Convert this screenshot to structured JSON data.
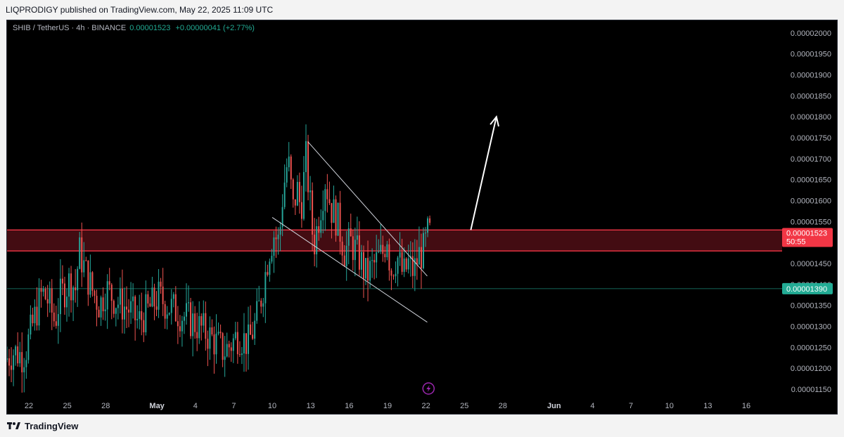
{
  "header": {
    "published": "LIQPRODIGY published on TradingView.com, May 22, 2025 11:09 UTC"
  },
  "legend": {
    "symbol": "SHIB / TetherUS · 4h · BINANCE",
    "last": "0.00001523",
    "change": "+0.00000041 (+2.77%)"
  },
  "footer": {
    "brand": "TradingView"
  },
  "colors": {
    "up": "#26a69a",
    "down": "#ef5350",
    "zone_fill": "#4a0d14",
    "zone_line": "#f23645",
    "support_line": "#22ab94",
    "trendline": "#d1d4dc",
    "arrow": "#ffffff",
    "badge_red": "#f23645",
    "badge_green": "#22ab94",
    "lightning": "#9c27b0"
  },
  "chart_data": {
    "type": "candlestick",
    "symbol": "SHIB/USDT",
    "interval": "4h",
    "y_tick_labels": [
      "0.00001150",
      "0.00001200",
      "0.00001250",
      "0.00001300",
      "0.00001350",
      "0.00001400",
      "0.00001450",
      "0.00001500",
      "0.00001550",
      "0.00001600",
      "0.00001650",
      "0.00001700",
      "0.00001750",
      "0.00001800",
      "0.00001850",
      "0.00001900",
      "0.00001950",
      "0.00002000"
    ],
    "y_ticks": [
      1.15e-05,
      1.2e-05,
      1.25e-05,
      1.3e-05,
      1.35e-05,
      1.4e-05,
      1.45e-05,
      1.5e-05,
      1.55e-05,
      1.6e-05,
      1.65e-05,
      1.7e-05,
      1.75e-05,
      1.8e-05,
      1.85e-05,
      1.9e-05,
      1.95e-05,
      2e-05
    ],
    "ylim": [
      1.13e-05,
      2.03e-05
    ],
    "x_ticks": [
      {
        "label": "22",
        "day": -9
      },
      {
        "label": "25",
        "day": -6
      },
      {
        "label": "28",
        "day": -3
      },
      {
        "label": "May",
        "day": 1,
        "bold": true
      },
      {
        "label": "4",
        "day": 4
      },
      {
        "label": "7",
        "day": 7
      },
      {
        "label": "10",
        "day": 10
      },
      {
        "label": "13",
        "day": 13
      },
      {
        "label": "16",
        "day": 16
      },
      {
        "label": "19",
        "day": 19
      },
      {
        "label": "22",
        "day": 22
      },
      {
        "label": "25",
        "day": 25
      },
      {
        "label": "28",
        "day": 28
      },
      {
        "label": "Jun",
        "day": 32,
        "bold": true
      },
      {
        "label": "4",
        "day": 35
      },
      {
        "label": "7",
        "day": 38
      },
      {
        "label": "10",
        "day": 41
      },
      {
        "label": "13",
        "day": 44
      },
      {
        "label": "16",
        "day": 47
      }
    ],
    "xlim_days": [
      -10.7,
      49.8
    ],
    "price_path": [
      [
        -10.7,
        1.22e-05
      ],
      [
        -10.0,
        1.24e-05
      ],
      [
        -9.3,
        1.23e-05
      ],
      [
        -9.0,
        1.25e-05
      ],
      [
        -8.3,
        1.33e-05
      ],
      [
        -7.8,
        1.38e-05
      ],
      [
        -7.3,
        1.36e-05
      ],
      [
        -6.8,
        1.31e-05
      ],
      [
        -6.4,
        1.37e-05
      ],
      [
        -5.6,
        1.41e-05
      ],
      [
        -5.2,
        1.39e-05
      ],
      [
        -4.9,
        1.48e-05
      ],
      [
        -4.4,
        1.43e-05
      ],
      [
        -3.8,
        1.38e-05
      ],
      [
        -3.3,
        1.35e-05
      ],
      [
        -2.8,
        1.39e-05
      ],
      [
        -2.0,
        1.36e-05
      ],
      [
        -1.0,
        1.34e-05
      ],
      [
        -0.3,
        1.31e-05
      ],
      [
        0.5,
        1.34e-05
      ],
      [
        1.3,
        1.37e-05
      ],
      [
        2.0,
        1.35e-05
      ],
      [
        3.0,
        1.33e-05
      ],
      [
        4.0,
        1.31e-05
      ],
      [
        4.8,
        1.29e-05
      ],
      [
        5.5,
        1.27e-05
      ],
      [
        6.4,
        1.24e-05
      ],
      [
        7.0,
        1.26e-05
      ],
      [
        7.5,
        1.28e-05
      ],
      [
        8.3,
        1.26e-05
      ],
      [
        8.9,
        1.31e-05
      ],
      [
        9.5,
        1.4e-05
      ],
      [
        9.9,
        1.48e-05
      ],
      [
        10.3,
        1.52e-05
      ],
      [
        10.7,
        1.5e-05
      ],
      [
        11.0,
        1.62e-05
      ],
      [
        11.4,
        1.7e-05
      ],
      [
        11.8,
        1.58e-05
      ],
      [
        12.1,
        1.63e-05
      ],
      [
        12.4,
        1.58e-05
      ],
      [
        12.8,
        1.7e-05
      ],
      [
        13.1,
        1.6e-05
      ],
      [
        13.4,
        1.49e-05
      ],
      [
        13.8,
        1.56e-05
      ],
      [
        14.3,
        1.65e-05
      ],
      [
        14.8,
        1.58e-05
      ],
      [
        15.3,
        1.55e-05
      ],
      [
        15.8,
        1.48e-05
      ],
      [
        16.3,
        1.5e-05
      ],
      [
        16.9,
        1.47e-05
      ],
      [
        17.5,
        1.42e-05
      ],
      [
        18.2,
        1.45e-05
      ],
      [
        18.9,
        1.48e-05
      ],
      [
        19.1,
        1.53e-05
      ],
      [
        19.4,
        1.43e-05
      ],
      [
        19.9,
        1.47e-05
      ],
      [
        20.4,
        1.42e-05
      ],
      [
        20.8,
        1.45e-05
      ],
      [
        21.2,
        1.43e-05
      ],
      [
        21.6,
        1.47e-05
      ],
      [
        22.0,
        1.48e-05
      ],
      [
        22.3,
        1.52e-05
      ]
    ],
    "current_price": 1.523e-05,
    "current_price_label": "0.00001523",
    "countdown_label": "50:55",
    "support_price": 1.39e-05,
    "support_price_label": "0.00001390",
    "resistance_zone": {
      "low": 1.48e-05,
      "high": 1.53e-05
    },
    "channel": {
      "upper": {
        "from": [
          12.8,
          1.74e-05
        ],
        "to": [
          22.1,
          1.42e-05
        ]
      },
      "lower": {
        "from": [
          10.0,
          1.56e-05
        ],
        "to": [
          22.1,
          1.31e-05
        ]
      }
    },
    "projection_arrow": {
      "from": [
        25.5,
        1.53e-05
      ],
      "to": [
        27.5,
        1.8e-05
      ]
    }
  }
}
